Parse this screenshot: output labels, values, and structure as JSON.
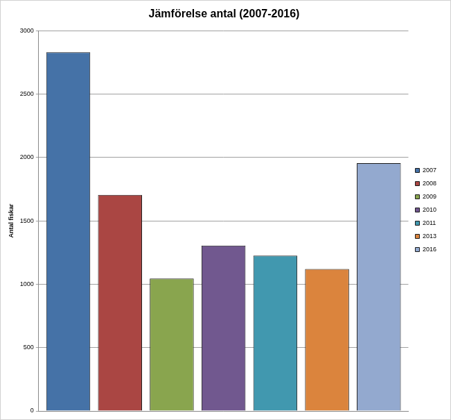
{
  "chart_data": {
    "type": "bar",
    "title": "Jämförelse antal (2007-2016)",
    "y_label": "Antal fiskar",
    "categories": [
      null
    ],
    "series": [
      {
        "name": "2007",
        "color": "#4572a7",
        "values": [
          2830
        ]
      },
      {
        "name": "2008",
        "color": "#aa4643",
        "values": [
          1705
        ]
      },
      {
        "name": "2009",
        "color": "#89a54e",
        "values": [
          1045
        ]
      },
      {
        "name": "2010",
        "color": "#71588f",
        "values": [
          1305
        ]
      },
      {
        "name": "2011",
        "color": "#4198af",
        "values": [
          1225
        ]
      },
      {
        "name": "2013",
        "color": "#db843d",
        "values": [
          1120
        ]
      },
      {
        "name": "2016",
        "color": "#93a9cf",
        "values": [
          1955
        ]
      }
    ],
    "ylim": [
      0,
      3000
    ],
    "yticks": [
      0,
      500,
      1000,
      1500,
      2000,
      2500,
      3000
    ],
    "grid": true,
    "legend": "right",
    "tick_labels": "y"
  }
}
